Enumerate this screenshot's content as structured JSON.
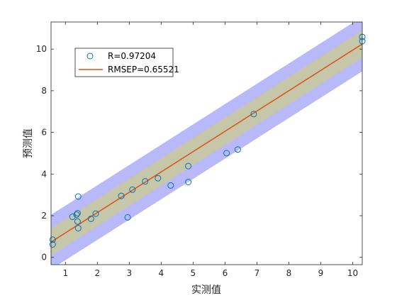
{
  "chart_data": {
    "type": "scatter",
    "xlabel": "实测值",
    "ylabel": "预测值",
    "xlim": [
      0.55,
      10.3
    ],
    "ylim": [
      -0.35,
      11.3
    ],
    "xticks": [
      1,
      2,
      3,
      4,
      5,
      6,
      7,
      8,
      9,
      10
    ],
    "yticks": [
      0,
      2,
      4,
      6,
      8,
      10
    ],
    "grid": false,
    "legend_position": "top-left",
    "colors": {
      "marker": "#0072BD",
      "fit_line": "#D95319",
      "inner_band": "#C8C8A0",
      "outer_band": "#A8A8F8"
    },
    "series": [
      {
        "name": "R=0.97204",
        "kind": "scatter",
        "points": [
          [
            0.6,
            0.85
          ],
          [
            0.6,
            0.62
          ],
          [
            1.22,
            1.95
          ],
          [
            1.35,
            2.05
          ],
          [
            1.38,
            2.12
          ],
          [
            1.38,
            1.72
          ],
          [
            1.4,
            2.92
          ],
          [
            1.4,
            1.4
          ],
          [
            1.8,
            1.85
          ],
          [
            1.95,
            2.1
          ],
          [
            2.75,
            2.95
          ],
          [
            2.95,
            1.92
          ],
          [
            3.1,
            3.25
          ],
          [
            3.5,
            3.65
          ],
          [
            3.9,
            3.8
          ],
          [
            4.3,
            3.45
          ],
          [
            4.85,
            4.38
          ],
          [
            4.85,
            3.62
          ],
          [
            6.05,
            5.0
          ],
          [
            6.4,
            5.18
          ],
          [
            6.9,
            6.88
          ],
          [
            10.3,
            10.38
          ],
          [
            10.3,
            10.58
          ]
        ]
      },
      {
        "name": "RMSEP=0.65521",
        "kind": "line",
        "fit": {
          "slope": 0.975,
          "intercept": 0.2
        },
        "inner_band_halfwidth": 0.655,
        "outer_band_halfwidth": 1.31
      }
    ]
  }
}
